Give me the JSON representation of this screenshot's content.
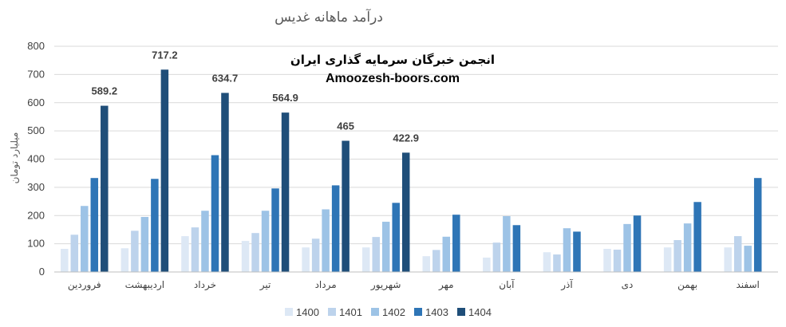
{
  "chart_data": {
    "type": "bar",
    "title": "درآمد ماهانه غدیس",
    "ylabel": "میلیارد تومان",
    "xlabel": "",
    "ylim": [
      0,
      800
    ],
    "yticks": [
      0,
      100,
      200,
      300,
      400,
      500,
      600,
      700,
      800
    ],
    "grid": true,
    "legend_position": "bottom",
    "categories": [
      "فروردین",
      "اردیبهشت",
      "خرداد",
      "تیر",
      "مرداد",
      "شهریور",
      "مهر",
      "آبان",
      "آذر",
      "دی",
      "بهمن",
      "اسفند"
    ],
    "series": [
      {
        "name": "1400",
        "color": "#dde8f5",
        "values": [
          82,
          84,
          127,
          110,
          87,
          87,
          56,
          51,
          70,
          82,
          87,
          87
        ]
      },
      {
        "name": "1401",
        "color": "#bdd3ec",
        "values": [
          132,
          146,
          158,
          138,
          118,
          124,
          78,
          104,
          62,
          79,
          113,
          127
        ]
      },
      {
        "name": "1402",
        "color": "#9dc3e6",
        "values": [
          234,
          195,
          217,
          217,
          222,
          178,
          125,
          198,
          155,
          170,
          172,
          93
        ]
      },
      {
        "name": "1403",
        "color": "#2e75b6",
        "values": [
          333,
          330,
          414,
          296,
          307,
          245,
          203,
          166,
          143,
          200,
          248,
          333
        ]
      },
      {
        "name": "1404",
        "color": "#1f4e79",
        "values": [
          589.2,
          717.2,
          634.7,
          564.9,
          465,
          422.9,
          null,
          null,
          null,
          null,
          null,
          null
        ],
        "data_labels": [
          "589.2",
          "717.2",
          "634.7",
          "564.9",
          "465",
          "422.9"
        ]
      }
    ]
  },
  "watermark": {
    "line1": "انجمن خبرگان سرمایه گذاری ایران",
    "line2": "Amoozesh-boors.com"
  }
}
